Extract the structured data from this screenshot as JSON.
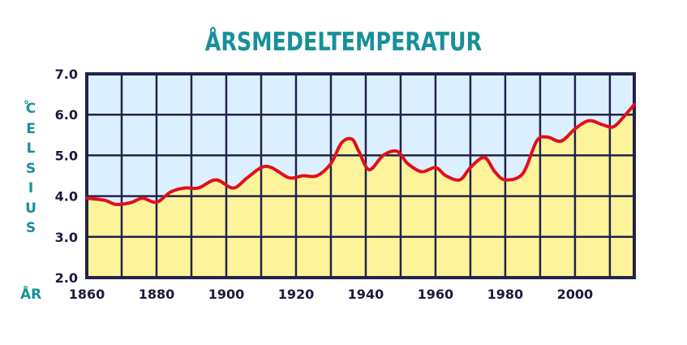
{
  "chart_data": {
    "type": "line",
    "title": "ÅRSMEDELTEMPERATUR",
    "ylabel": "°CELSIUS",
    "xlabel": "ÅR",
    "xlim": [
      1860,
      2017
    ],
    "ylim": [
      2.0,
      7.0
    ],
    "x_ticks": [
      "1860",
      "1880",
      "1900",
      "1920",
      "1940",
      "1960",
      "1980",
      "2000"
    ],
    "y_ticks": [
      "2.0",
      "3.0",
      "4.0",
      "5.0",
      "6.0",
      "7.0"
    ],
    "grid": true,
    "colors": {
      "line": "#e0101e",
      "fill_below": "#fdf39b",
      "fill_above": "#dcefff",
      "grid": "#22224a",
      "text": "#17909a"
    },
    "series": [
      {
        "x": [
          1860,
          1865,
          1868,
          1870,
          1873,
          1876,
          1880,
          1884,
          1888,
          1892,
          1897,
          1902,
          1906,
          1910,
          1913,
          1918,
          1922,
          1926,
          1930,
          1933,
          1936,
          1938,
          1941,
          1945,
          1949,
          1952,
          1956,
          1960,
          1963,
          1967,
          1970,
          1974,
          1977,
          1980,
          1985,
          1989,
          1992,
          1996,
          2000,
          2004,
          2008,
          2011,
          2014,
          2017
        ],
        "y": [
          3.95,
          3.9,
          3.8,
          3.8,
          3.85,
          3.95,
          3.85,
          4.1,
          4.2,
          4.2,
          4.4,
          4.2,
          4.45,
          4.7,
          4.7,
          4.45,
          4.5,
          4.5,
          4.8,
          5.3,
          5.4,
          5.1,
          4.65,
          5.0,
          5.1,
          4.8,
          4.6,
          4.7,
          4.5,
          4.4,
          4.7,
          4.95,
          4.6,
          4.4,
          4.55,
          5.35,
          5.45,
          5.35,
          5.65,
          5.85,
          5.75,
          5.7,
          5.95,
          6.25
        ]
      }
    ]
  }
}
